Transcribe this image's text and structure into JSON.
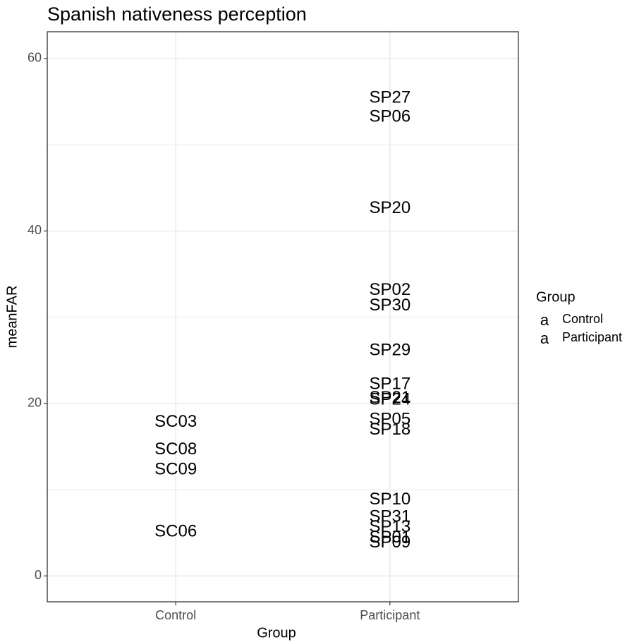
{
  "chart_data": {
    "type": "text-scatter",
    "title": "Spanish nativeness perception",
    "x_label": "Group",
    "y_label": "meanFAR",
    "categories": [
      "Control",
      "Participant"
    ],
    "series": [
      {
        "name": "Control",
        "color": "#F8766D",
        "labels": [
          "SC03",
          "SC08",
          "SC09",
          "SC06"
        ],
        "values": [
          17.8,
          14.6,
          12.3,
          5.1
        ]
      },
      {
        "name": "Participant",
        "color": "#00BFC4",
        "labels": [
          "SP27",
          "SP06",
          "SP20",
          "SP02",
          "SP30",
          "SP29",
          "SP17",
          "SP21",
          "SP24",
          "SP05",
          "SP18",
          "SP10",
          "SP31",
          "SP13",
          "SP01",
          "SP09"
        ],
        "values": [
          55.4,
          53.2,
          42.6,
          33.1,
          31.3,
          26.1,
          22.2,
          20.6,
          20.4,
          18.1,
          16.9,
          8.8,
          6.8,
          5.6,
          4.4,
          3.8
        ]
      }
    ],
    "ylim": [
      -3,
      63.1
    ],
    "yticks": [
      0,
      20,
      40,
      60
    ],
    "minor_yticks": [
      10,
      30,
      50
    ],
    "grid": true,
    "legend_title": "Group",
    "legend_key": "a",
    "legend_position": "right"
  }
}
